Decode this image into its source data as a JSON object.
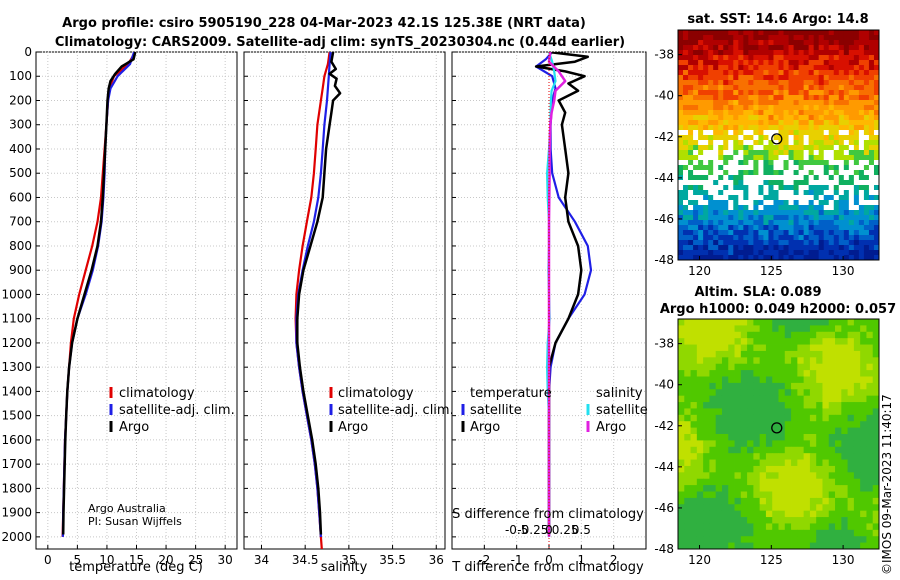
{
  "title": {
    "line1": "Argo profile: csiro 5905190_228 04-Mar-2023 42.1S 125.38E (NRT data)",
    "line2": "Climatology: CARS2009. Satellite-adj clim: synTS_20230304.nc (0.44d earlier)"
  },
  "credit": {
    "line1": "Argo Australia",
    "line2": "PI: Susan Wijffels"
  },
  "timestamp": "©IMOS 09-Mar-2023 11:40:17",
  "colors": {
    "climatology": "#e00000",
    "satellite": "#1f1fe6",
    "argo": "#000000",
    "cyan": "#22e0f0",
    "magenta": "#e020e0"
  },
  "sst_map": {
    "title": "sat. SST: 14.6 Argo: 14.8",
    "xticks": [
      120,
      125,
      130
    ],
    "yticks": [
      -38,
      -40,
      -42,
      -44,
      -46,
      -48
    ],
    "argo_lon": 125.38,
    "argo_lat": -42.1
  },
  "sla_map": {
    "title1": "Altim. SLA: 0.089",
    "title2": "Argo h1000: 0.049 h2000: 0.057",
    "xticks": [
      120,
      125,
      130
    ],
    "yticks": [
      -38,
      -40,
      -42,
      -44,
      -46,
      -48
    ],
    "argo_lon": 125.38,
    "argo_lat": -42.1
  },
  "chart_data": [
    {
      "type": "line",
      "xlabel": "temperature (deg C)",
      "xlim": [
        -2,
        32
      ],
      "ylim": [
        0,
        2050
      ],
      "xticks": [
        0,
        5,
        10,
        15,
        20,
        25,
        30
      ],
      "yticks": [
        0,
        100,
        200,
        300,
        400,
        500,
        600,
        700,
        800,
        900,
        1000,
        1100,
        1200,
        1300,
        1400,
        1500,
        1600,
        1700,
        1800,
        1900,
        2000
      ],
      "legend": {
        "placement": "lower-right",
        "entries": [
          "climatology",
          "satellite-adj. clim.",
          "Argo"
        ]
      },
      "series": [
        {
          "name": "climatology",
          "color": "#e00000",
          "depth": [
            0,
            50,
            100,
            150,
            200,
            300,
            400,
            500,
            600,
            700,
            800,
            900,
            1000,
            1100,
            1200,
            1300,
            1400,
            1500,
            1600,
            1700,
            1800,
            1900,
            2000
          ],
          "values": [
            14.8,
            13.6,
            11.2,
            10.4,
            10.2,
            9.9,
            9.6,
            9.3,
            9.0,
            8.4,
            7.5,
            6.4,
            5.3,
            4.4,
            3.9,
            3.6,
            3.3,
            3.1,
            2.9,
            2.8,
            2.7,
            2.6,
            2.5
          ]
        },
        {
          "name": "satellite-adj. clim.",
          "color": "#1f1fe6",
          "depth": [
            0,
            50,
            100,
            150,
            200,
            300,
            400,
            500,
            600,
            700,
            800,
            900,
            1000,
            1100,
            1200,
            1300,
            1400,
            1500,
            1600,
            1700,
            1800,
            1900,
            2000
          ],
          "values": [
            14.6,
            13.9,
            11.8,
            10.6,
            10.2,
            9.9,
            9.7,
            9.6,
            9.4,
            9.1,
            8.5,
            7.6,
            6.4,
            5.0,
            4.1,
            3.6,
            3.3,
            3.1,
            2.9,
            2.8,
            2.7,
            2.6,
            2.55
          ]
        },
        {
          "name": "Argo",
          "color": "#000000",
          "depth": [
            0,
            30,
            60,
            90,
            120,
            150,
            200,
            300,
            400,
            500,
            600,
            700,
            800,
            900,
            1000,
            1100,
            1200,
            1300,
            1400,
            1500,
            1600,
            1700,
            1800,
            1900,
            1990
          ],
          "values": [
            14.8,
            14.5,
            12.5,
            11.4,
            10.6,
            10.3,
            10.1,
            9.9,
            9.7,
            9.5,
            9.3,
            9.0,
            8.4,
            7.4,
            6.2,
            5.0,
            4.1,
            3.6,
            3.3,
            3.1,
            2.95,
            2.85,
            2.75,
            2.65,
            2.6
          ]
        }
      ]
    },
    {
      "type": "line",
      "xlabel": "salinity",
      "xlim": [
        33.8,
        36.1
      ],
      "ylim": [
        0,
        2050
      ],
      "xticks": [
        34,
        34.5,
        35,
        35.5,
        36
      ],
      "legend": {
        "placement": "lower-right",
        "entries": [
          "climatology",
          "satellite-adj. clim.",
          "Argo"
        ]
      },
      "series": [
        {
          "name": "climatology",
          "color": "#e00000",
          "depth": [
            0,
            50,
            100,
            150,
            200,
            300,
            400,
            500,
            600,
            700,
            800,
            900,
            1000,
            1100,
            1200,
            1300,
            1400,
            1500,
            1600,
            1700,
            1800,
            1900,
            2000,
            2050
          ],
          "values": [
            34.78,
            34.76,
            34.72,
            34.7,
            34.68,
            34.64,
            34.62,
            34.6,
            34.57,
            34.52,
            34.47,
            34.43,
            34.4,
            34.39,
            34.4,
            34.43,
            34.47,
            34.52,
            34.57,
            34.61,
            34.64,
            34.66,
            34.68,
            34.69
          ]
        },
        {
          "name": "satellite-adj. clim.",
          "color": "#1f1fe6",
          "depth": [
            0,
            50,
            100,
            150,
            200,
            300,
            400,
            500,
            600,
            700,
            800,
            900,
            1000,
            1100,
            1200,
            1300,
            1400,
            1500,
            1600,
            1700,
            1800,
            1900,
            2000
          ],
          "values": [
            34.79,
            34.78,
            34.77,
            34.76,
            34.75,
            34.72,
            34.7,
            34.68,
            34.65,
            34.6,
            34.53,
            34.47,
            34.42,
            34.4,
            34.4,
            34.43,
            34.47,
            34.52,
            34.57,
            34.61,
            34.64,
            34.66,
            34.68
          ]
        },
        {
          "name": "Argo",
          "color": "#000000",
          "depth": [
            0,
            40,
            70,
            90,
            110,
            140,
            170,
            200,
            250,
            300,
            400,
            500,
            600,
            700,
            800,
            900,
            1000,
            1100,
            1200,
            1300,
            1400,
            1500,
            1600,
            1700,
            1800,
            1900,
            1990
          ],
          "values": [
            34.82,
            34.8,
            34.85,
            34.78,
            34.86,
            34.84,
            34.9,
            34.82,
            34.8,
            34.78,
            34.74,
            34.72,
            34.7,
            34.64,
            34.56,
            34.48,
            34.43,
            34.41,
            34.41,
            34.44,
            34.48,
            34.53,
            34.58,
            34.62,
            34.65,
            34.67,
            34.68
          ]
        }
      ]
    },
    {
      "type": "line",
      "xlabel": "T difference from climatology",
      "xlabel2": "S difference from climatology",
      "xlim": [
        -3,
        3
      ],
      "ylim": [
        0,
        2050
      ],
      "xticks": [
        -2,
        -1,
        0,
        1,
        2
      ],
      "x2ticks": [
        "-0.5",
        "-0.25",
        "0",
        "0.25",
        "0.5"
      ],
      "legend": {
        "placement": "lower",
        "headers": [
          "temperature",
          "salinity"
        ],
        "entries": [
          "satellite",
          "Argo",
          "satellite",
          "Argo"
        ]
      },
      "series": [
        {
          "name": "T satellite",
          "color": "#1f1fe6",
          "depth": [
            0,
            30,
            60,
            100,
            150,
            200,
            300,
            400,
            500,
            600,
            700,
            800,
            900,
            1000,
            1100,
            1200,
            1300,
            1400,
            1600,
            1800,
            2000
          ],
          "values": [
            0.1,
            -0.1,
            -0.4,
            0.1,
            0.2,
            0.1,
            0.05,
            0.05,
            0.1,
            0.3,
            0.8,
            1.2,
            1.3,
            1.1,
            0.6,
            0.2,
            0.05,
            0.0,
            0.0,
            0.0,
            0.0
          ]
        },
        {
          "name": "T Argo",
          "color": "#000000",
          "depth": [
            0,
            20,
            40,
            60,
            80,
            100,
            130,
            160,
            200,
            250,
            300,
            400,
            500,
            600,
            700,
            800,
            900,
            1000,
            1100,
            1200,
            1300,
            1400,
            1600,
            1800,
            1990
          ],
          "values": [
            0.0,
            1.2,
            0.8,
            -0.4,
            0.5,
            1.1,
            0.6,
            0.9,
            0.3,
            0.5,
            0.4,
            0.5,
            0.6,
            0.5,
            0.6,
            0.9,
            1.0,
            0.9,
            0.6,
            0.2,
            0.0,
            0.0,
            0.0,
            0.0,
            0.0
          ]
        },
        {
          "name": "S satellite",
          "color": "#22e0f0",
          "depth": [
            0,
            40,
            80,
            120,
            160,
            200,
            300,
            400,
            500,
            600,
            700,
            800,
            900,
            1000,
            1100,
            1200,
            1300,
            1400,
            1500,
            1600,
            1800,
            2000
          ],
          "values": [
            0.0,
            0.05,
            0.08,
            0.1,
            0.04,
            0.03,
            0.02,
            0.0,
            -0.03,
            -0.02,
            0.0,
            0.0,
            -0.01,
            0.0,
            0.01,
            -0.02,
            -0.03,
            -0.02,
            0.0,
            0.0,
            0.0,
            0.0
          ]
        },
        {
          "name": "S Argo",
          "color": "#e020e0",
          "depth": [
            0,
            40,
            80,
            120,
            160,
            200,
            250,
            300,
            400,
            500,
            700,
            900,
            1100,
            1300,
            1500,
            1700,
            1900,
            2000
          ],
          "values": [
            0.02,
            0.0,
            0.15,
            0.25,
            0.1,
            0.08,
            0.04,
            0.02,
            0.01,
            0.01,
            0.0,
            0.0,
            0.0,
            0.0,
            0.0,
            0.0,
            0.0,
            0.0
          ]
        }
      ]
    }
  ]
}
